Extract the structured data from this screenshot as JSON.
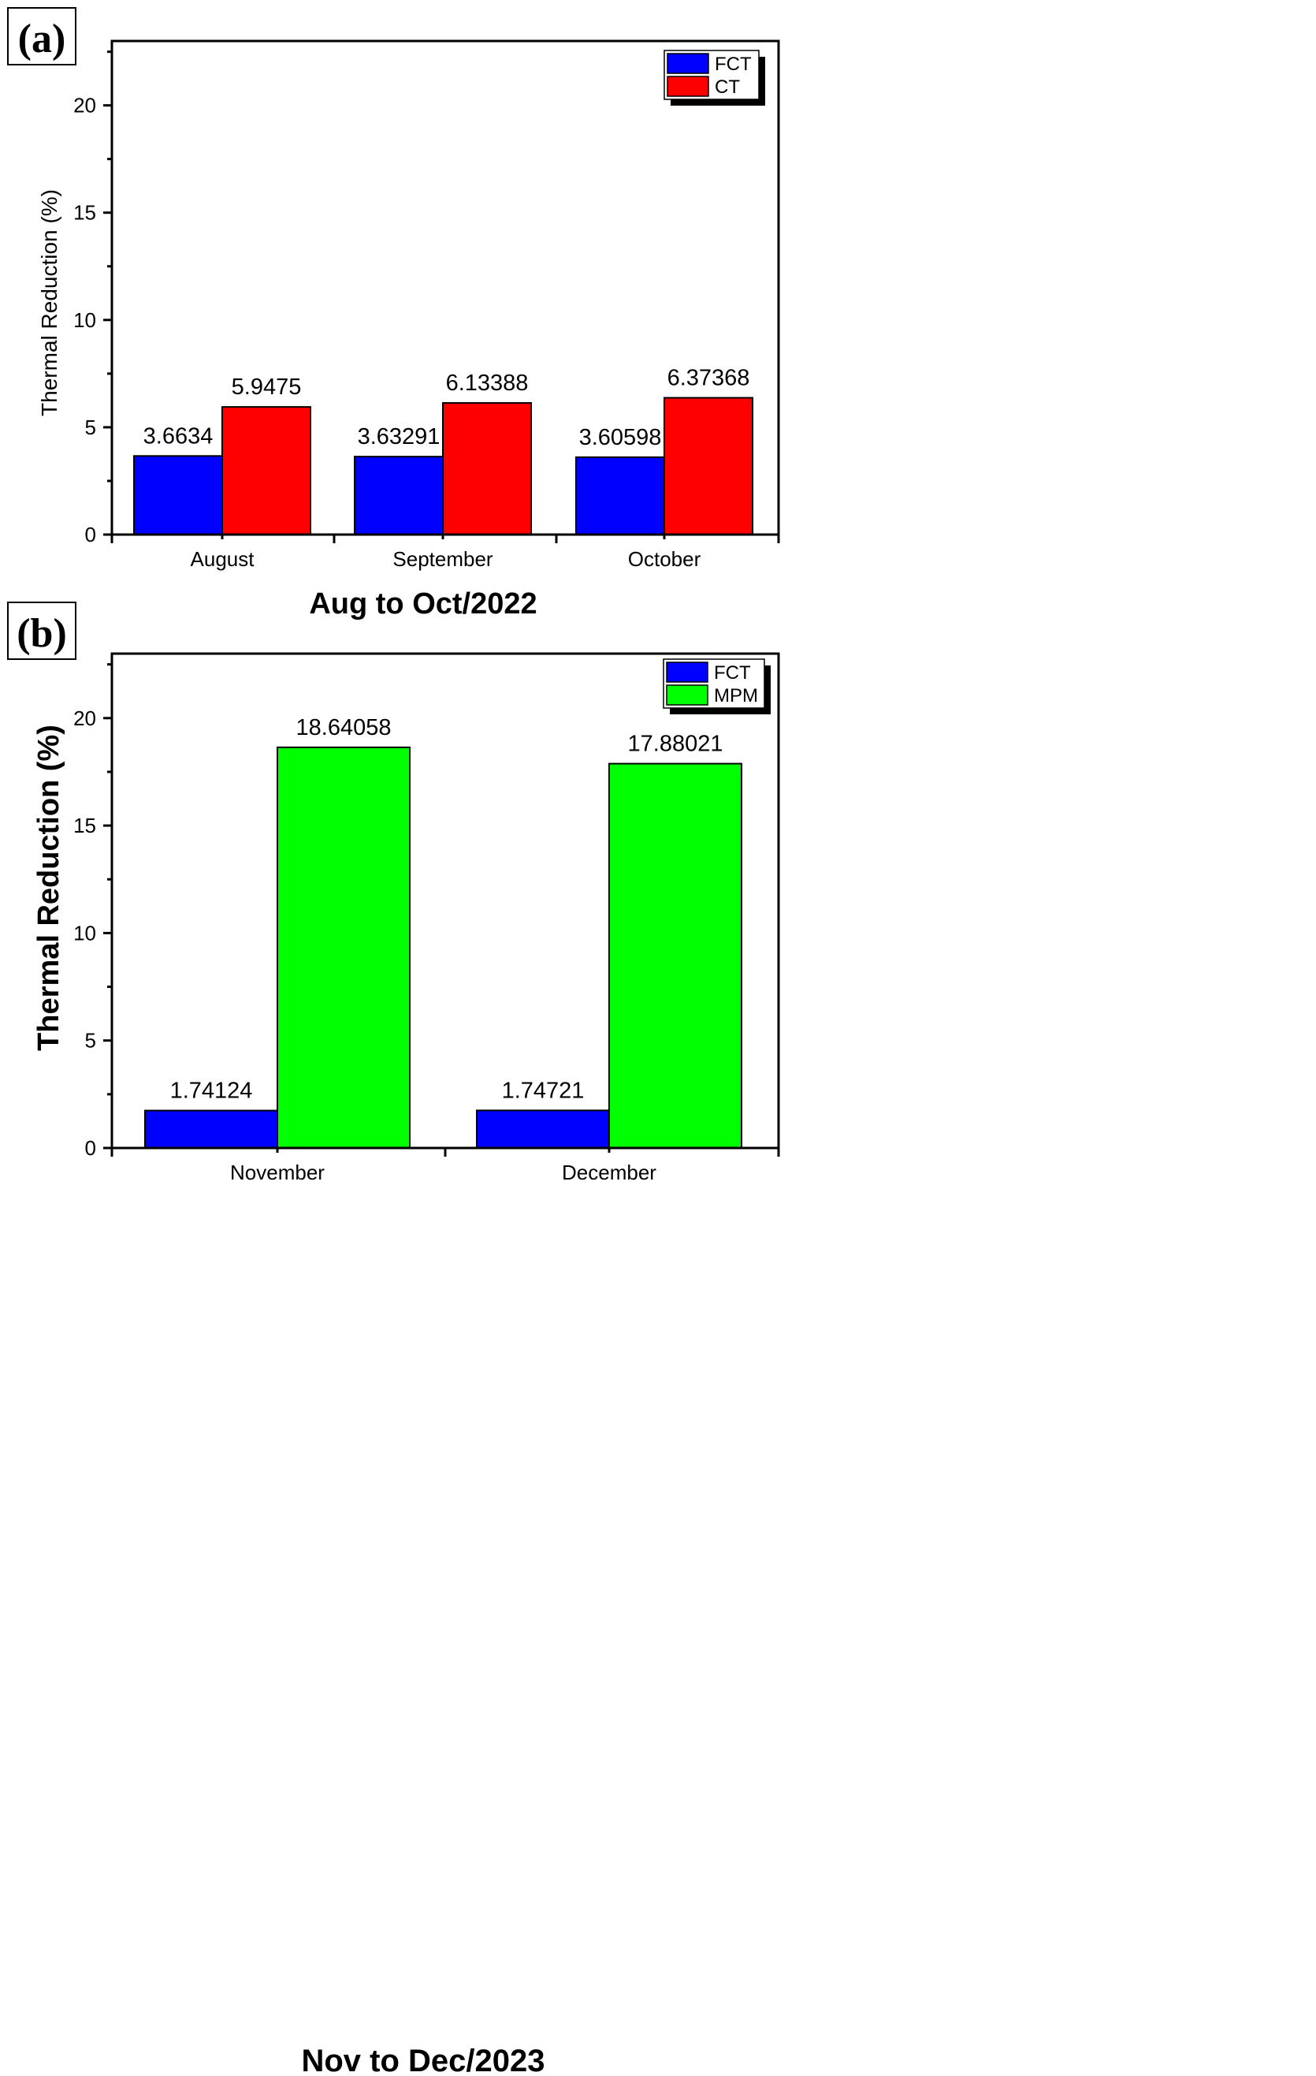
{
  "chart_data": [
    {
      "type": "bar",
      "panel_label": "(a)",
      "title": "Aug to Oct/2022",
      "xlabel": "Aug to Oct/2022",
      "ylabel": "Thermal Reduction (%)",
      "ylim": [
        0,
        23
      ],
      "yticks": [
        0,
        5,
        10,
        15,
        20
      ],
      "categories": [
        "August",
        "September",
        "October"
      ],
      "series": [
        {
          "name": "FCT",
          "color": "#0000ff",
          "values": [
            3.6634,
            3.63291,
            3.60598
          ],
          "labels": [
            "3.6634",
            "3.63291",
            "3.60598"
          ]
        },
        {
          "name": "CT",
          "color": "#ff0000",
          "values": [
            5.9475,
            6.13388,
            6.37368
          ],
          "labels": [
            "5.9475",
            "6.13388",
            "6.37368"
          ]
        }
      ],
      "legend_position": "top-right",
      "grid": false
    },
    {
      "type": "bar",
      "panel_label": "(b)",
      "title": "Nov to Dec/2023",
      "xlabel": "Nov to Dec/2023",
      "ylabel": "Thermal Reduction (%)",
      "ylim": [
        0,
        23
      ],
      "yticks": [
        0,
        5,
        10,
        15,
        20
      ],
      "categories": [
        "November",
        "December"
      ],
      "series": [
        {
          "name": "FCT",
          "color": "#0000ff",
          "values": [
            1.74124,
            1.74721
          ],
          "labels": [
            "1.74124",
            "1.74721"
          ]
        },
        {
          "name": "MPM",
          "color": "#00ff00",
          "values": [
            18.64058,
            17.88021
          ],
          "labels": [
            "18.64058",
            "17.88021"
          ]
        }
      ],
      "legend_position": "top-right",
      "grid": false
    }
  ]
}
